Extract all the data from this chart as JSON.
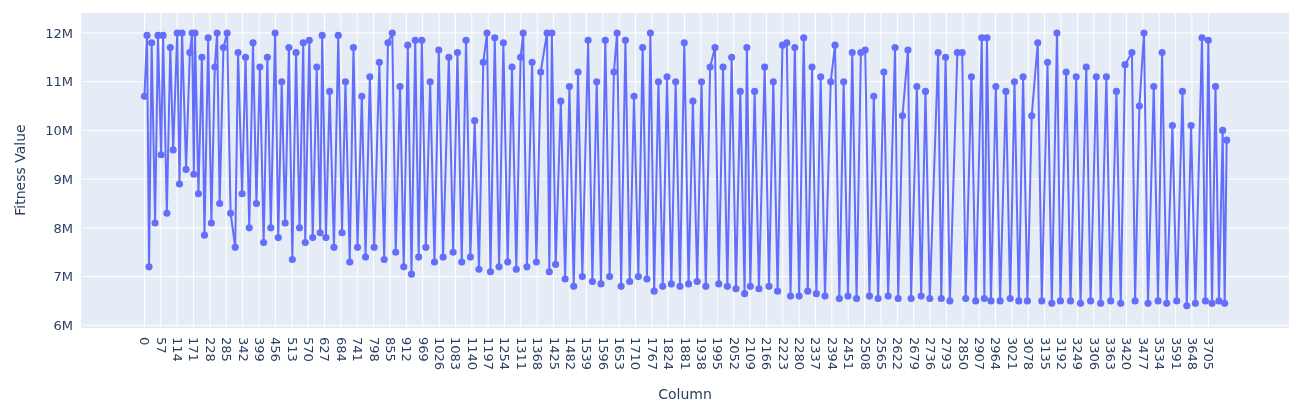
{
  "chart_data": {
    "type": "line",
    "xlabel": "Column",
    "ylabel": "Fitness Value",
    "xlim": [
      -221,
      3986
    ],
    "ylim": [
      5965000,
      12410000
    ],
    "xticks": [
      0,
      57,
      114,
      171,
      228,
      285,
      342,
      399,
      456,
      513,
      570,
      627,
      684,
      741,
      798,
      855,
      912,
      969,
      1026,
      1083,
      1140,
      1197,
      1254,
      1311,
      1368,
      1425,
      1482,
      1539,
      1596,
      1653,
      1710,
      1767,
      1824,
      1881,
      1938,
      1995,
      2052,
      2109,
      2166,
      2223,
      2280,
      2337,
      2394,
      2451,
      2508,
      2565,
      2622,
      2679,
      2736,
      2793,
      2850,
      2907,
      2964,
      3021,
      3078,
      3135,
      3192,
      3249,
      3306,
      3363,
      3420,
      3477,
      3534,
      3591,
      3648,
      3705
    ],
    "yticks": [
      {
        "value": 6000000,
        "label": "6M"
      },
      {
        "value": 7000000,
        "label": "7M"
      },
      {
        "value": 8000000,
        "label": "8M"
      },
      {
        "value": 9000000,
        "label": "9M"
      },
      {
        "value": 10000000,
        "label": "10M"
      },
      {
        "value": 11000000,
        "label": "11M"
      },
      {
        "value": 12000000,
        "label": "12M"
      }
    ],
    "grid": true,
    "marker": "circle",
    "line_style": "solid",
    "x": [
      0,
      9,
      16,
      25,
      37,
      47,
      58,
      65,
      78,
      90,
      100,
      114,
      122,
      131,
      145,
      158,
      166,
      172,
      176,
      188,
      200,
      209,
      222,
      233,
      245,
      253,
      262,
      275,
      288,
      300,
      316,
      326,
      340,
      352,
      365,
      378,
      390,
      402,
      415,
      428,
      440,
      455,
      466,
      478,
      490,
      503,
      515,
      528,
      540,
      553,
      560,
      574,
      586,
      600,
      612,
      619,
      632,
      645,
      660,
      675,
      688,
      700,
      715,
      728,
      742,
      757,
      770,
      785,
      800,
      818,
      835,
      848,
      863,
      875,
      890,
      903,
      917,
      930,
      943,
      955,
      966,
      980,
      995,
      1010,
      1025,
      1040,
      1060,
      1075,
      1090,
      1105,
      1120,
      1135,
      1150,
      1165,
      1180,
      1193,
      1205,
      1220,
      1235,
      1250,
      1265,
      1280,
      1295,
      1310,
      1319,
      1332,
      1350,
      1365,
      1380,
      1402,
      1410,
      1419,
      1432,
      1450,
      1465,
      1480,
      1495,
      1510,
      1525,
      1545,
      1560,
      1575,
      1590,
      1605,
      1620,
      1635,
      1646,
      1660,
      1675,
      1690,
      1705,
      1720,
      1735,
      1750,
      1762,
      1775,
      1790,
      1805,
      1820,
      1835,
      1850,
      1865,
      1880,
      1895,
      1910,
      1925,
      1940,
      1955,
      1970,
      1987,
      2000,
      2015,
      2030,
      2045,
      2060,
      2075,
      2090,
      2098,
      2110,
      2125,
      2140,
      2160,
      2175,
      2190,
      2205,
      2222,
      2237,
      2250,
      2265,
      2280,
      2296,
      2310,
      2325,
      2340,
      2355,
      2370,
      2390,
      2405,
      2420,
      2435,
      2450,
      2465,
      2480,
      2495,
      2510,
      2525,
      2540,
      2555,
      2575,
      2590,
      2614,
      2625,
      2640,
      2659,
      2670,
      2690,
      2705,
      2720,
      2735,
      2764,
      2775,
      2790,
      2805,
      2831,
      2848,
      2860,
      2880,
      2895,
      2916,
      2925,
      2934,
      2948,
      2965,
      2980,
      3000,
      3015,
      3030,
      3045,
      3060,
      3075,
      3090,
      3111,
      3125,
      3145,
      3160,
      3178,
      3190,
      3210,
      3225,
      3245,
      3260,
      3280,
      3295,
      3315,
      3330,
      3350,
      3365,
      3385,
      3400,
      3415,
      3439,
      3450,
      3465,
      3481,
      3495,
      3515,
      3530,
      3544,
      3560,
      3580,
      3595,
      3615,
      3630,
      3645,
      3660,
      3683,
      3695,
      3705,
      3718,
      3730,
      3742,
      3755,
      3762,
      3769
    ],
    "series": [
      {
        "color": "#636efa",
        "values": [
          10700000,
          11950000,
          7200000,
          11800000,
          8100000,
          11950000,
          9500000,
          11950000,
          8300000,
          11700000,
          9600000,
          12000000,
          8900000,
          12000000,
          9200000,
          11600000,
          12000000,
          9100000,
          12000000,
          8700000,
          11500000,
          7850000,
          11900000,
          8100000,
          11300000,
          12000000,
          8500000,
          11700000,
          12000000,
          8300000,
          7600000,
          11600000,
          8700000,
          11500000,
          8000000,
          11800000,
          8500000,
          11300000,
          7700000,
          11500000,
          8000000,
          12000000,
          7800000,
          11000000,
          8100000,
          11700000,
          7350000,
          11600000,
          8000000,
          11800000,
          7700000,
          11850000,
          7800000,
          11300000,
          7900000,
          11950000,
          7800000,
          10800000,
          7600000,
          11950000,
          7900000,
          11000000,
          7300000,
          11700000,
          7600000,
          10700000,
          7400000,
          11100000,
          7600000,
          11400000,
          7350000,
          11800000,
          12000000,
          7500000,
          10900000,
          7200000,
          11750000,
          7050000,
          11850000,
          7400000,
          11850000,
          7600000,
          11000000,
          7300000,
          11650000,
          7400000,
          11500000,
          7500000,
          11600000,
          7300000,
          11850000,
          7400000,
          10200000,
          7150000,
          11400000,
          12000000,
          7100000,
          11900000,
          7200000,
          11800000,
          7300000,
          11300000,
          7150000,
          11500000,
          12000000,
          7200000,
          11400000,
          7300000,
          11200000,
          12000000,
          7100000,
          12000000,
          7250000,
          10600000,
          6950000,
          10900000,
          6800000,
          11200000,
          7000000,
          11850000,
          6900000,
          11000000,
          6850000,
          11850000,
          7000000,
          11200000,
          12000000,
          6800000,
          11850000,
          6900000,
          10700000,
          7000000,
          11700000,
          6950000,
          12000000,
          6700000,
          11000000,
          6800000,
          11100000,
          6850000,
          11000000,
          6800000,
          11800000,
          6850000,
          10600000,
          6900000,
          11000000,
          6800000,
          11300000,
          11700000,
          6850000,
          11300000,
          6800000,
          11500000,
          6750000,
          10800000,
          6650000,
          11700000,
          6800000,
          10800000,
          6750000,
          11300000,
          6800000,
          11000000,
          6700000,
          11750000,
          11800000,
          6600000,
          11700000,
          6600000,
          11900000,
          6700000,
          11300000,
          6650000,
          11100000,
          6600000,
          11000000,
          11750000,
          6550000,
          11000000,
          6600000,
          11600000,
          6550000,
          11600000,
          11650000,
          6600000,
          10700000,
          6550000,
          11200000,
          6600000,
          11700000,
          6550000,
          10300000,
          11650000,
          6550000,
          10900000,
          6600000,
          10800000,
          6550000,
          11600000,
          6550000,
          11500000,
          6500000,
          11600000,
          11600000,
          6550000,
          11100000,
          6500000,
          11900000,
          6550000,
          11900000,
          6500000,
          10900000,
          6500000,
          10800000,
          6550000,
          11000000,
          6500000,
          11100000,
          6500000,
          10300000,
          11800000,
          6500000,
          11400000,
          6450000,
          12000000,
          6500000,
          11200000,
          6500000,
          11100000,
          6450000,
          11300000,
          6500000,
          11100000,
          6450000,
          11100000,
          6500000,
          10800000,
          6450000,
          11350000,
          11600000,
          6500000,
          10500000,
          12000000,
          6450000,
          10900000,
          6500000,
          11600000,
          6450000,
          10100000,
          6500000,
          10800000,
          6400000,
          10100000,
          6450000,
          11900000,
          6500000,
          11850000,
          6450000,
          10900000,
          6500000,
          10000000,
          6450000,
          9800000
        ]
      }
    ]
  }
}
